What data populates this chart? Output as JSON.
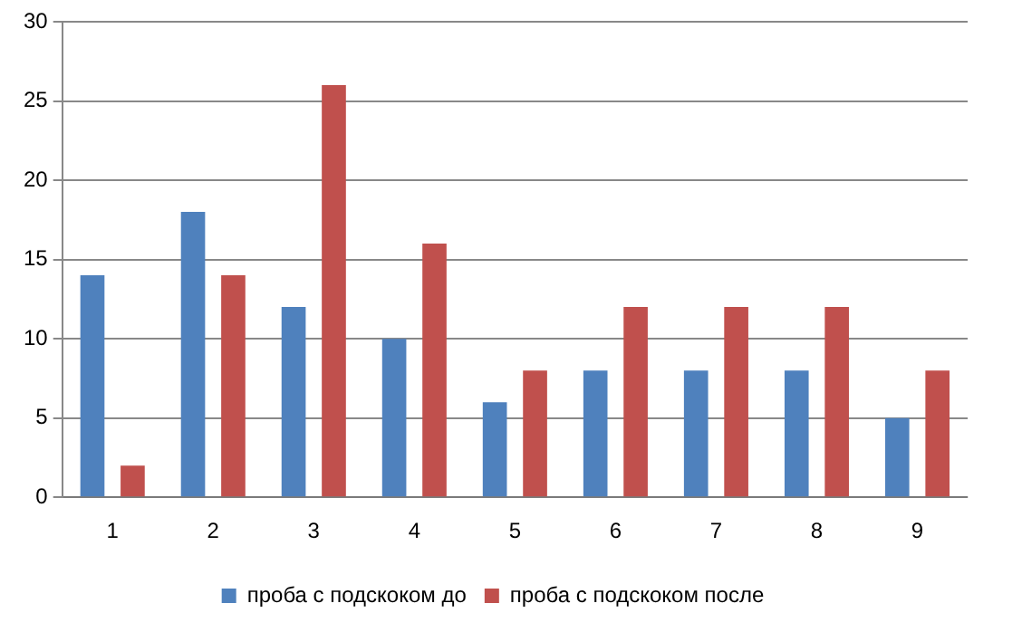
{
  "chart_data": {
    "type": "bar",
    "categories": [
      "1",
      "2",
      "3",
      "4",
      "5",
      "6",
      "7",
      "8",
      "9"
    ],
    "series": [
      {
        "name": "проба с подскоком до",
        "color": "#4f81bd",
        "values": [
          14,
          18,
          12,
          10,
          6,
          8,
          8,
          8,
          5
        ]
      },
      {
        "name": "проба с подскоком после",
        "color": "#c0504d",
        "values": [
          2,
          14,
          26,
          16,
          8,
          12,
          12,
          12,
          8
        ]
      }
    ],
    "ylim": [
      0,
      30
    ],
    "yticks": [
      0,
      5,
      10,
      15,
      20,
      25,
      30
    ],
    "grid": "y",
    "legend": "bottom"
  }
}
